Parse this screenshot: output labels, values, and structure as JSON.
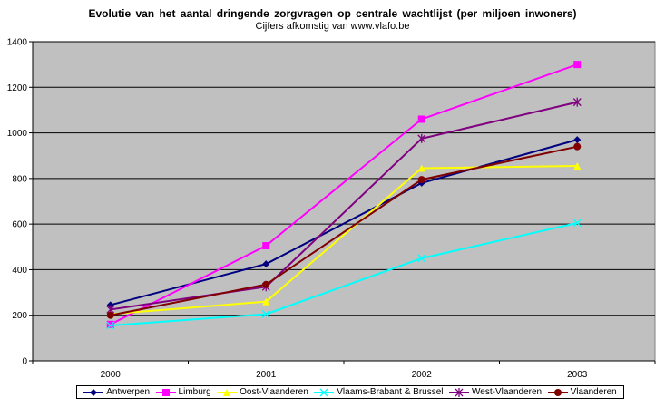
{
  "chart_data": {
    "type": "line",
    "title": "Evolutie van het aantal dringende zorgvragen op centrale wachtlijst (per miljoen inwoners)",
    "subtitle": "Cijfers afkomstig van www.vlafo.be",
    "xlabel": "",
    "ylabel": "",
    "categories": [
      "2000",
      "2001",
      "2002",
      "2003"
    ],
    "ylim": [
      0,
      1400
    ],
    "yticks": [
      0,
      200,
      400,
      600,
      800,
      1000,
      1200,
      1400
    ],
    "grid": true,
    "legend_position": "bottom",
    "plot_background": "#c0c0c0",
    "series": [
      {
        "name": "Antwerpen",
        "values": [
          245,
          425,
          780,
          970
        ],
        "color": "#000080",
        "marker": "diamond"
      },
      {
        "name": "Limburg",
        "values": [
          160,
          505,
          1060,
          1300
        ],
        "color": "#ff00ff",
        "marker": "square"
      },
      {
        "name": "Oost-Vlaanderen",
        "values": [
          205,
          260,
          845,
          855
        ],
        "color": "#ffff00",
        "marker": "triangle"
      },
      {
        "name": "Vlaams-Brabant & Brussel",
        "values": [
          155,
          205,
          450,
          605
        ],
        "color": "#00ffff",
        "marker": "x"
      },
      {
        "name": "West-Vlaanderen",
        "values": [
          225,
          325,
          975,
          1135
        ],
        "color": "#800080",
        "marker": "star"
      },
      {
        "name": "Vlaanderen",
        "values": [
          200,
          335,
          795,
          940
        ],
        "color": "#800000",
        "marker": "circle"
      }
    ]
  }
}
